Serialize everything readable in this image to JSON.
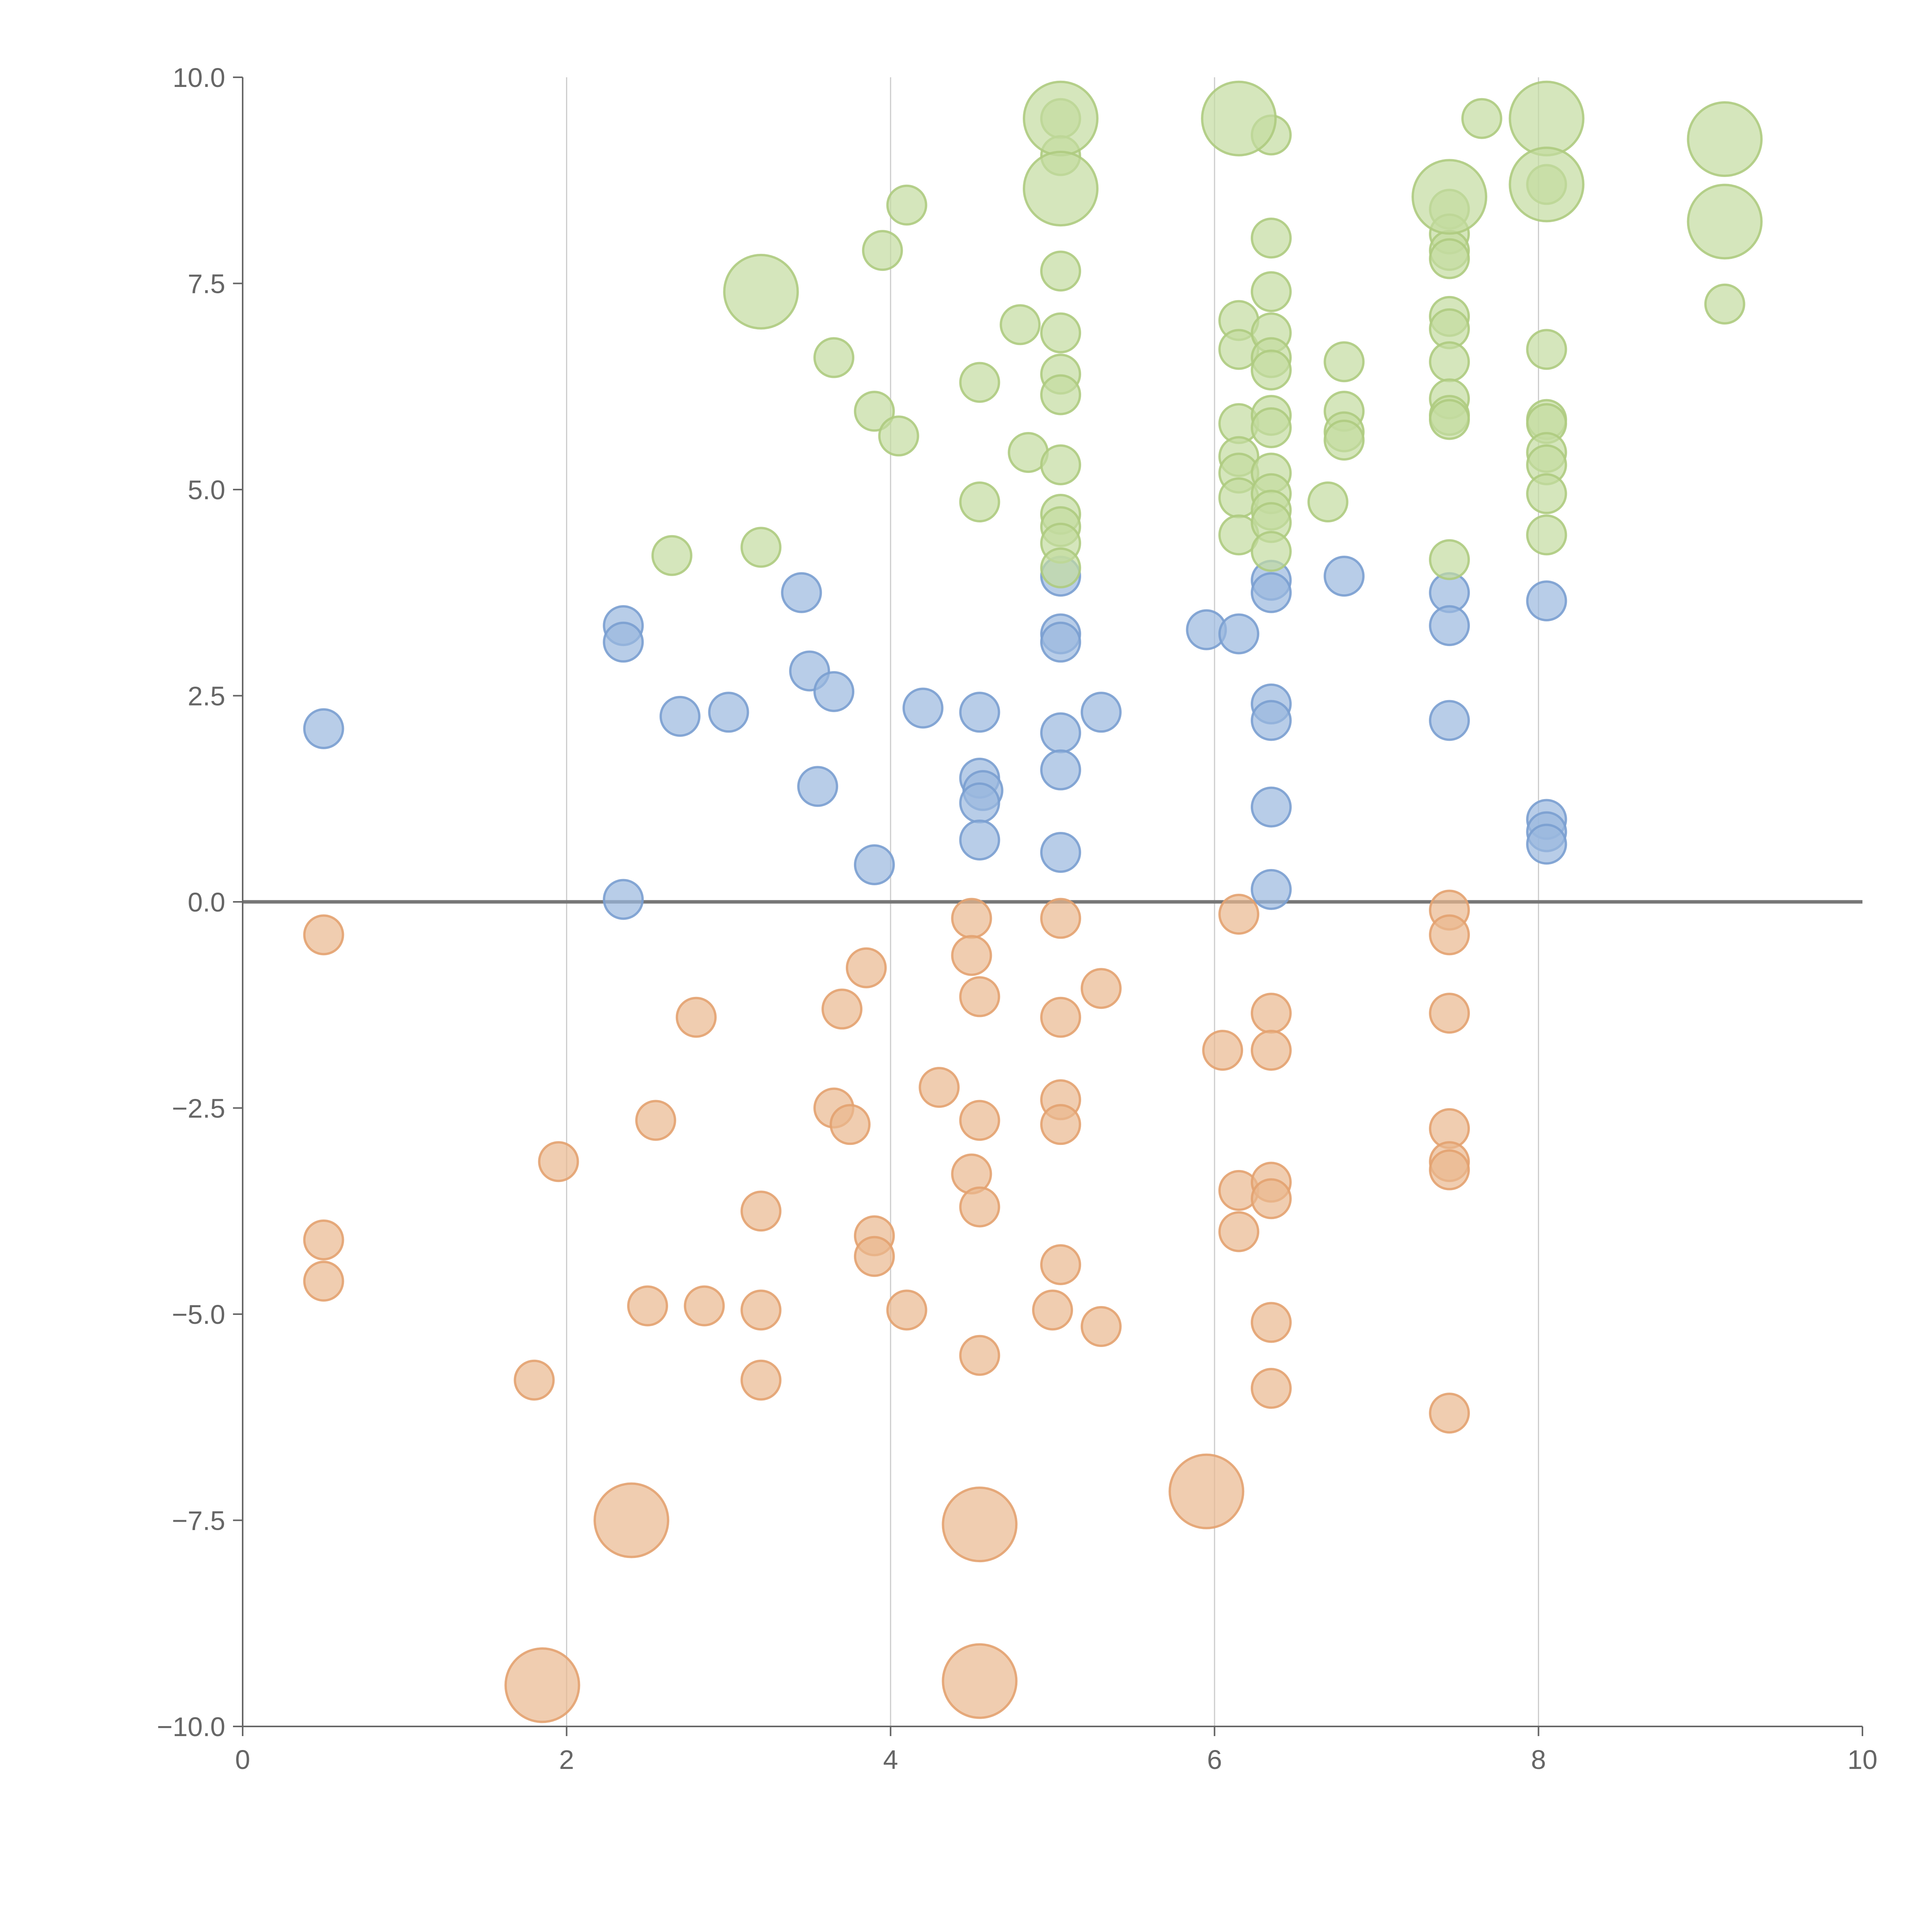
{
  "chart_data": {
    "type": "scatter",
    "title": "",
    "xlabel": "",
    "ylabel": "",
    "xlim": [
      0,
      10
    ],
    "ylim": [
      -10,
      10
    ],
    "x_ticks": [
      "0",
      "2",
      "4",
      "6",
      "8",
      "10"
    ],
    "x_tick_values": [
      0,
      2,
      4,
      6,
      8,
      10
    ],
    "y_ticks": [
      "10.0",
      "7.5",
      "5.0",
      "2.5",
      "0.0",
      "−2.5",
      "−5.0",
      "−7.5",
      "−10.0"
    ],
    "y_tick_values": [
      10,
      7.5,
      5,
      2.5,
      0,
      -2.5,
      -5,
      -7.5,
      -10
    ],
    "vertical_grid": true,
    "horizontal_grid": false,
    "zero_line": true,
    "series": [
      {
        "color": "#9ab8de",
        "stroke": "#7a9fd0",
        "points": [
          [
            0.5,
            2.1
          ],
          [
            2.35,
            3.35
          ],
          [
            2.35,
            3.15
          ],
          [
            2.35,
            0.03
          ],
          [
            2.7,
            2.25
          ],
          [
            3.0,
            2.3
          ],
          [
            3.45,
            3.75
          ],
          [
            3.5,
            2.8
          ],
          [
            3.55,
            1.4
          ],
          [
            3.65,
            2.55
          ],
          [
            3.9,
            0.45
          ],
          [
            4.2,
            2.35
          ],
          [
            4.55,
            2.3
          ],
          [
            4.55,
            1.5
          ],
          [
            4.57,
            1.35
          ],
          [
            4.55,
            1.2
          ],
          [
            4.55,
            0.75
          ],
          [
            5.05,
            3.95
          ],
          [
            5.05,
            3.25
          ],
          [
            5.05,
            3.15
          ],
          [
            5.05,
            2.05
          ],
          [
            5.05,
            1.6
          ],
          [
            5.05,
            0.6
          ],
          [
            5.3,
            2.3
          ],
          [
            5.95,
            3.3
          ],
          [
            6.15,
            3.25
          ],
          [
            6.35,
            3.9
          ],
          [
            6.35,
            3.75
          ],
          [
            6.35,
            2.4
          ],
          [
            6.35,
            2.2
          ],
          [
            6.35,
            1.15
          ],
          [
            6.35,
            0.15
          ],
          [
            6.8,
            3.95
          ],
          [
            7.45,
            3.75
          ],
          [
            7.45,
            3.35
          ],
          [
            7.45,
            2.2
          ],
          [
            8.05,
            3.65
          ],
          [
            8.05,
            1.0
          ],
          [
            8.05,
            0.85
          ],
          [
            8.05,
            0.7
          ]
        ]
      },
      {
        "color": "#eab88e",
        "stroke": "#e3a270",
        "points": [
          [
            0.5,
            -0.4
          ],
          [
            0.5,
            -4.1
          ],
          [
            0.5,
            -4.6
          ],
          [
            1.8,
            -5.8
          ],
          [
            1.95,
            -3.15
          ],
          [
            2.5,
            -4.9
          ],
          [
            2.55,
            -2.65
          ],
          [
            2.8,
            -1.4
          ],
          [
            2.85,
            -4.9
          ],
          [
            3.2,
            -3.75
          ],
          [
            3.2,
            -4.95
          ],
          [
            3.2,
            -5.8
          ],
          [
            3.65,
            -2.5
          ],
          [
            3.7,
            -1.3
          ],
          [
            3.75,
            -2.7
          ],
          [
            3.85,
            -0.8
          ],
          [
            3.9,
            -4.05
          ],
          [
            3.9,
            -4.3
          ],
          [
            4.1,
            -4.95
          ],
          [
            4.3,
            -2.25
          ],
          [
            4.5,
            -0.2
          ],
          [
            4.5,
            -0.65
          ],
          [
            4.5,
            -3.3
          ],
          [
            4.55,
            -5.5
          ],
          [
            4.55,
            -1.15
          ],
          [
            4.55,
            -2.65
          ],
          [
            4.55,
            -3.7
          ],
          [
            5.0,
            -4.95
          ],
          [
            5.05,
            -0.2
          ],
          [
            5.05,
            -1.4
          ],
          [
            5.05,
            -2.4
          ],
          [
            5.05,
            -2.7
          ],
          [
            5.05,
            -4.4
          ],
          [
            5.3,
            -1.05
          ],
          [
            5.3,
            -5.15
          ],
          [
            6.05,
            -1.8
          ],
          [
            6.15,
            -0.15
          ],
          [
            6.15,
            -3.5
          ],
          [
            6.15,
            -4.0
          ],
          [
            6.35,
            -1.35
          ],
          [
            6.35,
            -1.8
          ],
          [
            6.35,
            -3.4
          ],
          [
            6.35,
            -3.6
          ],
          [
            6.35,
            -5.1
          ],
          [
            6.35,
            -5.9
          ],
          [
            7.45,
            -0.1
          ],
          [
            7.45,
            -0.4
          ],
          [
            7.45,
            -1.35
          ],
          [
            7.45,
            -2.75
          ],
          [
            7.45,
            -3.15
          ],
          [
            7.45,
            -3.25
          ],
          [
            7.45,
            -6.2
          ]
        ]
      },
      {
        "color": "#c3db9f",
        "stroke": "#aecb80",
        "points": [
          [
            2.65,
            4.2
          ],
          [
            3.2,
            4.3
          ],
          [
            3.65,
            6.6
          ],
          [
            3.9,
            5.95
          ],
          [
            3.95,
            7.9
          ],
          [
            4.05,
            5.65
          ],
          [
            4.1,
            8.45
          ],
          [
            4.55,
            6.3
          ],
          [
            4.55,
            4.85
          ],
          [
            4.8,
            7.0
          ],
          [
            4.85,
            5.45
          ],
          [
            5.05,
            9.5
          ],
          [
            5.05,
            9.05
          ],
          [
            5.05,
            7.65
          ],
          [
            5.05,
            6.9
          ],
          [
            5.05,
            6.4
          ],
          [
            5.05,
            6.15
          ],
          [
            5.05,
            5.3
          ],
          [
            5.05,
            4.7
          ],
          [
            5.05,
            4.55
          ],
          [
            5.05,
            4.35
          ],
          [
            5.05,
            4.05
          ],
          [
            6.15,
            7.05
          ],
          [
            6.15,
            6.7
          ],
          [
            6.15,
            5.8
          ],
          [
            6.15,
            5.4
          ],
          [
            6.15,
            5.2
          ],
          [
            6.15,
            4.9
          ],
          [
            6.15,
            4.45
          ],
          [
            6.35,
            9.3
          ],
          [
            6.35,
            8.05
          ],
          [
            6.35,
            7.4
          ],
          [
            6.35,
            6.9
          ],
          [
            6.35,
            6.6
          ],
          [
            6.35,
            6.45
          ],
          [
            6.35,
            5.9
          ],
          [
            6.35,
            5.75
          ],
          [
            6.35,
            5.2
          ],
          [
            6.35,
            4.95
          ],
          [
            6.35,
            4.75
          ],
          [
            6.35,
            4.6
          ],
          [
            6.35,
            4.25
          ],
          [
            6.7,
            4.85
          ],
          [
            6.8,
            6.55
          ],
          [
            6.8,
            5.95
          ],
          [
            6.8,
            5.7
          ],
          [
            6.8,
            5.6
          ],
          [
            7.45,
            8.4
          ],
          [
            7.45,
            8.1
          ],
          [
            7.45,
            7.9
          ],
          [
            7.45,
            7.8
          ],
          [
            7.45,
            7.1
          ],
          [
            7.45,
            6.95
          ],
          [
            7.45,
            6.55
          ],
          [
            7.45,
            6.1
          ],
          [
            7.45,
            5.9
          ],
          [
            7.45,
            5.85
          ],
          [
            7.45,
            4.15
          ],
          [
            7.65,
            9.5
          ],
          [
            8.05,
            8.7
          ],
          [
            8.05,
            6.7
          ],
          [
            8.05,
            5.85
          ],
          [
            8.05,
            5.8
          ],
          [
            8.05,
            5.45
          ],
          [
            8.05,
            5.3
          ],
          [
            8.05,
            4.95
          ],
          [
            8.05,
            4.45
          ],
          [
            9.15,
            7.25
          ]
        ]
      }
    ],
    "highlighted_points": [
      {
        "x": 3.2,
        "y": 7.4,
        "color": "#c3db9f",
        "stroke": "#aecb80"
      },
      {
        "x": 5.05,
        "y": 9.5,
        "color": "#c3db9f",
        "stroke": "#aecb80"
      },
      {
        "x": 5.05,
        "y": 8.65,
        "color": "#c3db9f",
        "stroke": "#aecb80"
      },
      {
        "x": 6.15,
        "y": 9.5,
        "color": "#c3db9f",
        "stroke": "#aecb80"
      },
      {
        "x": 7.45,
        "y": 8.55,
        "color": "#c3db9f",
        "stroke": "#aecb80"
      },
      {
        "x": 8.05,
        "y": 9.5,
        "color": "#c3db9f",
        "stroke": "#aecb80"
      },
      {
        "x": 8.05,
        "y": 8.7,
        "color": "#c3db9f",
        "stroke": "#aecb80"
      },
      {
        "x": 9.15,
        "y": 9.25,
        "color": "#c3db9f",
        "stroke": "#aecb80"
      },
      {
        "x": 9.15,
        "y": 8.25,
        "color": "#c3db9f",
        "stroke": "#aecb80"
      },
      {
        "x": 2.4,
        "y": -7.5,
        "color": "#eab88e",
        "stroke": "#e3a270"
      },
      {
        "x": 4.55,
        "y": -7.55,
        "color": "#eab88e",
        "stroke": "#e3a270"
      },
      {
        "x": 5.95,
        "y": -7.15,
        "color": "#eab88e",
        "stroke": "#e3a270"
      },
      {
        "x": 1.85,
        "y": -9.5,
        "color": "#eab88e",
        "stroke": "#e3a270"
      },
      {
        "x": 4.55,
        "y": -9.45,
        "color": "#eab88e",
        "stroke": "#e3a270"
      }
    ],
    "colors": {
      "axis": "#666666",
      "grid": "#cccccc",
      "zero_line": "#777777"
    }
  }
}
